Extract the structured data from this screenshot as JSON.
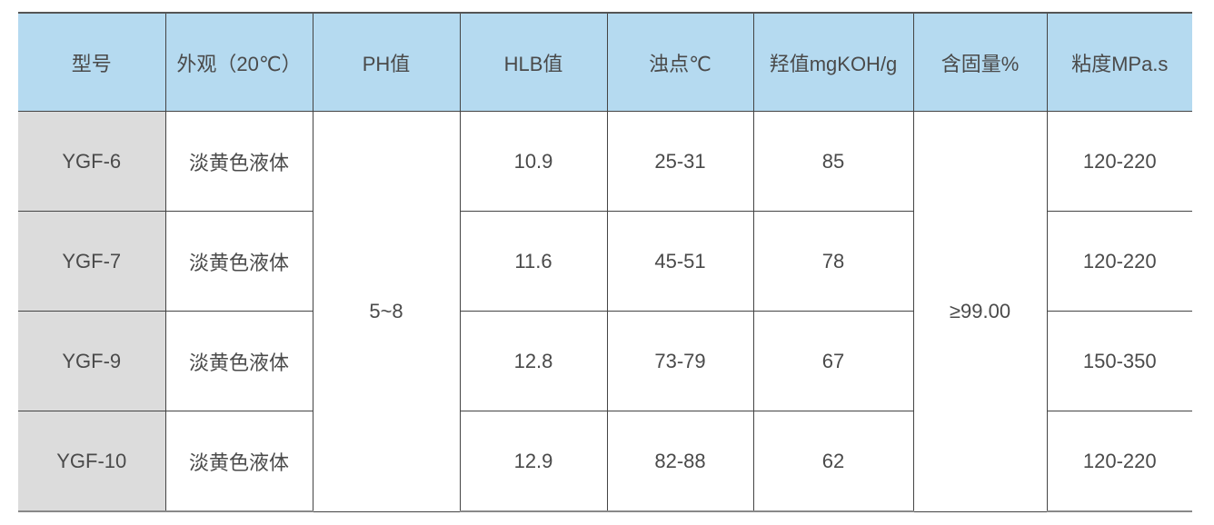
{
  "table": {
    "headers": [
      "型号",
      "外观（20℃）",
      "PH值",
      "HLB值",
      "浊点℃",
      "羟值mgKOH/g",
      "含固量%",
      "粘度MPa.s"
    ],
    "ph_value": "5~8",
    "solid_content": "≥99.00",
    "rows": [
      {
        "model": "YGF-6",
        "appearance": "淡黄色液体",
        "hlb": "10.9",
        "cloud_point": "25-31",
        "hydroxyl": "85",
        "viscosity": "120-220"
      },
      {
        "model": "YGF-7",
        "appearance": "淡黄色液体",
        "hlb": "11.6",
        "cloud_point": "45-51",
        "hydroxyl": "78",
        "viscosity": "120-220"
      },
      {
        "model": "YGF-9",
        "appearance": "淡黄色液体",
        "hlb": "12.8",
        "cloud_point": "73-79",
        "hydroxyl": "67",
        "viscosity": "150-350"
      },
      {
        "model": "YGF-10",
        "appearance": "淡黄色液体",
        "hlb": "12.9",
        "cloud_point": "82-88",
        "hydroxyl": "62",
        "viscosity": "120-220"
      }
    ],
    "colors": {
      "header_bg": "#b5daf0",
      "model_bg": "#dcdcdc",
      "text": "#4a4a4a"
    }
  }
}
